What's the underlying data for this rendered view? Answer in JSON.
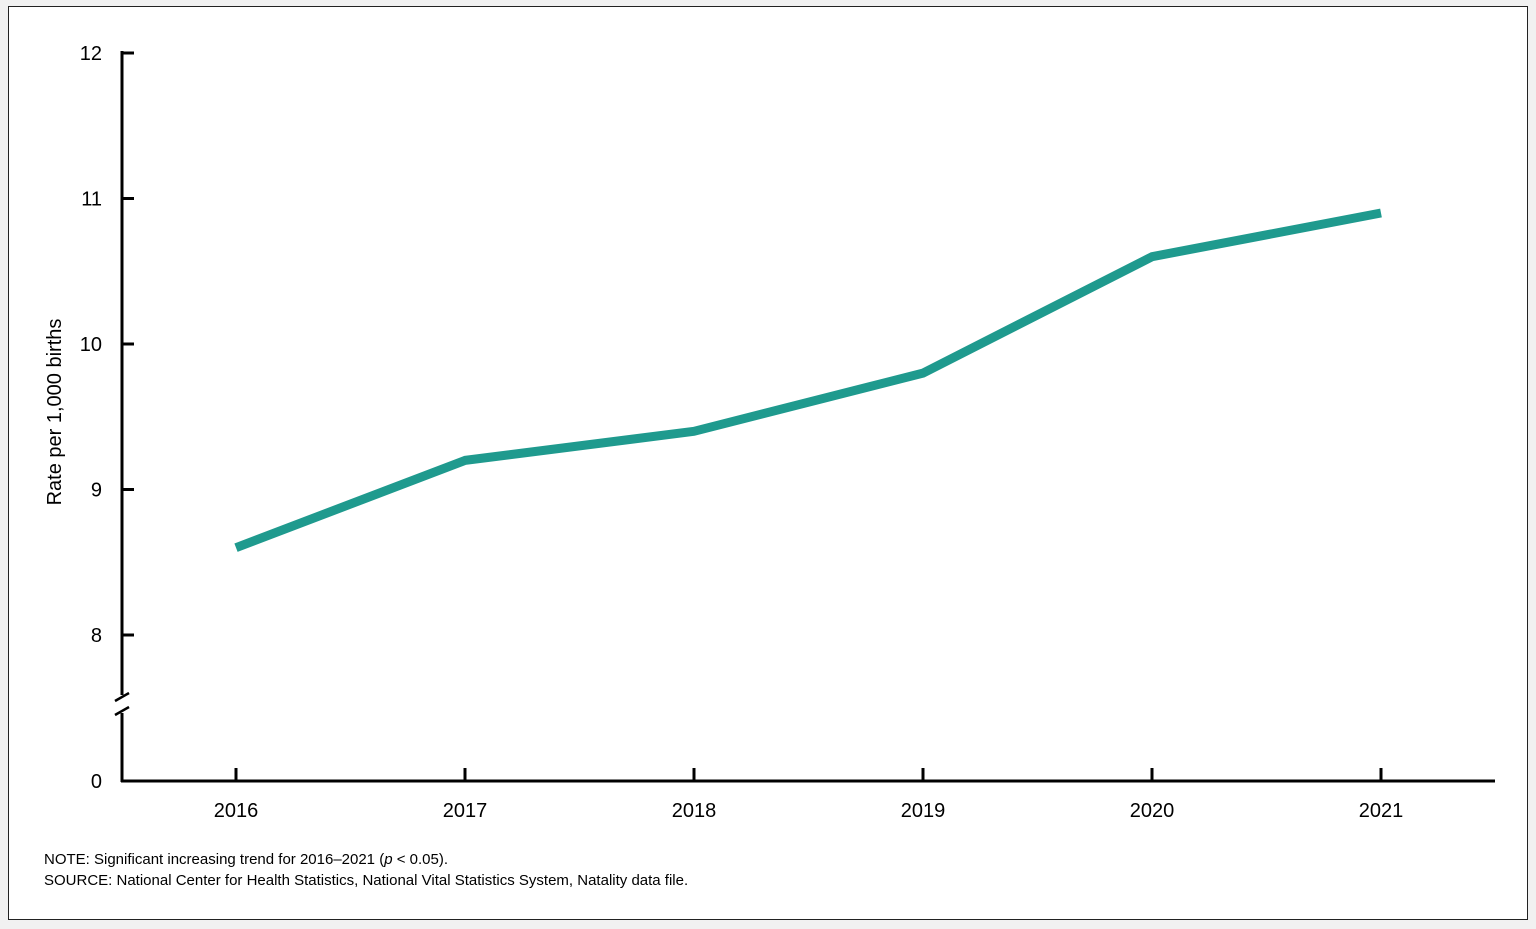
{
  "chart_data": {
    "type": "line",
    "x": [
      "2016",
      "2017",
      "2018",
      "2019",
      "2020",
      "2021"
    ],
    "series": [
      {
        "values": [
          8.6,
          9.2,
          9.4,
          9.8,
          10.6,
          10.9
        ]
      }
    ],
    "xlabel": "",
    "ylabel": "Rate per 1,000  births",
    "ylim": [
      8,
      12
    ],
    "y_ticks": [
      8,
      9,
      10,
      11,
      12
    ],
    "y_break_to": 0,
    "y_break_label": "0",
    "grid": false,
    "line_color": "#1f9a8e"
  },
  "notes": {
    "note_prefix": "NOTE: Significant increasing trend for 2016–2021 (",
    "note_p": "p",
    "note_suffix": " < 0.05).",
    "source": "SOURCE: National Center for Health Statistics, National Vital Statistics System, Natality data file."
  }
}
